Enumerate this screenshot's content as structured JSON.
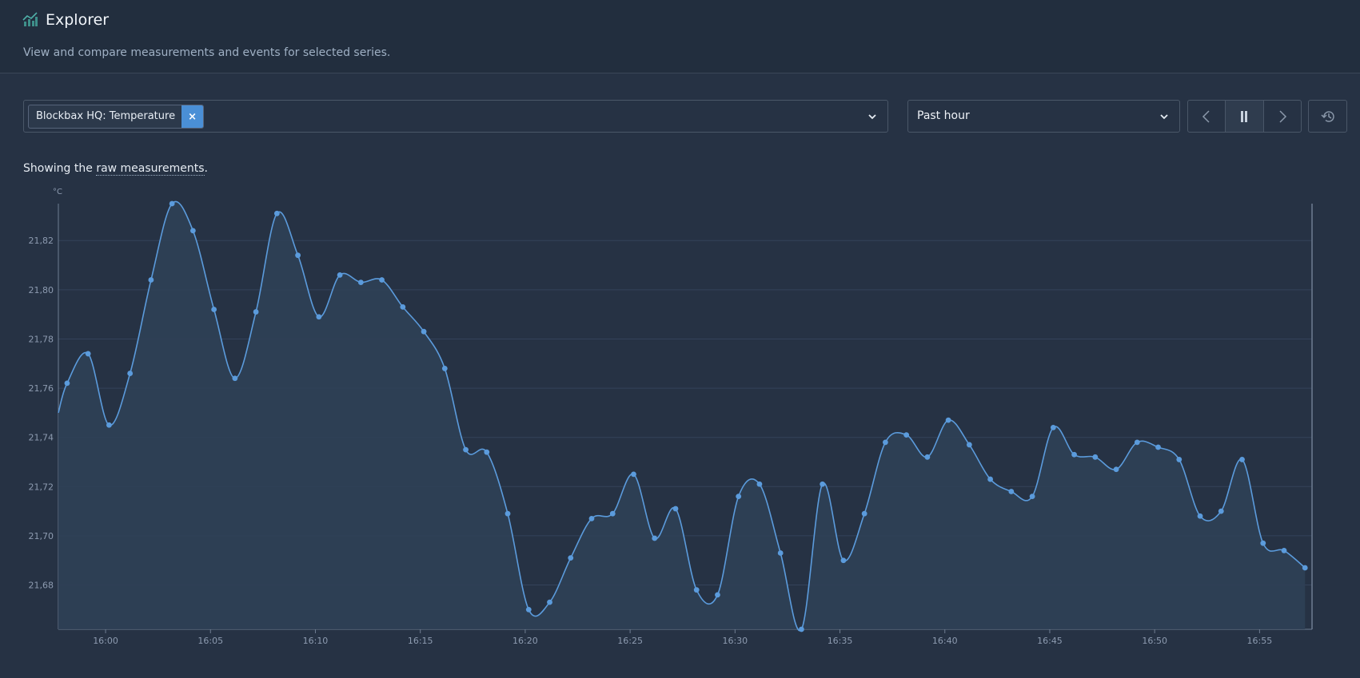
{
  "header": {
    "title": "Explorer",
    "subtitle": "View and compare measurements and events for selected series."
  },
  "series_selector": {
    "chips": [
      {
        "label": "Blockbax HQ: Temperature",
        "remove_symbol": "×"
      }
    ]
  },
  "period_selector": {
    "value": "Past hour"
  },
  "navigation": {
    "icons": [
      "chevron-left-icon",
      "pause-icon",
      "chevron-right-icon",
      "history-icon"
    ]
  },
  "info": {
    "prefix": "Showing the ",
    "link": "raw measurements",
    "suffix": "."
  },
  "colors": {
    "accent": "#5b9bdc",
    "background": "#263244",
    "header": "#222e3e"
  },
  "chart_data": {
    "type": "area",
    "unit": "°C",
    "x_format": "HH:MM",
    "xlim": [
      "15:57:45",
      "16:57:30"
    ],
    "ylim": [
      21.662,
      21.835
    ],
    "y_ticks": [
      "21,68",
      "21,70",
      "21,72",
      "21,74",
      "21,76",
      "21,78",
      "21,80",
      "21,82"
    ],
    "x_ticks": [
      "16:00",
      "16:05",
      "16:10",
      "16:15",
      "16:20",
      "16:25",
      "16:30",
      "16:35",
      "16:40",
      "16:45",
      "16:50",
      "16:55"
    ],
    "grid": true,
    "series": [
      {
        "x": [
          "15:57:45",
          "15:58:10",
          "15:59:10",
          "16:00:10",
          "16:01:10",
          "16:02:10",
          "16:03:10",
          "16:04:10",
          "16:05:10",
          "16:06:10",
          "16:07:10",
          "16:08:10",
          "16:09:10",
          "16:10:10",
          "16:11:10",
          "16:12:10",
          "16:13:10",
          "16:14:10",
          "16:15:10",
          "16:16:10",
          "16:17:10",
          "16:18:10",
          "16:19:10",
          "16:20:10",
          "16:21:10",
          "16:22:10",
          "16:23:10",
          "16:24:10",
          "16:25:10",
          "16:26:10",
          "16:27:10",
          "16:28:10",
          "16:29:10",
          "16:30:10",
          "16:31:10",
          "16:32:10",
          "16:33:10",
          "16:34:10",
          "16:35:10",
          "16:36:10",
          "16:37:10",
          "16:38:10",
          "16:39:10",
          "16:40:10",
          "16:41:10",
          "16:42:10",
          "16:43:10",
          "16:44:10",
          "16:45:10",
          "16:46:10",
          "16:47:10",
          "16:48:10",
          "16:49:10",
          "16:50:10",
          "16:51:10",
          "16:52:10",
          "16:53:10",
          "16:54:10",
          "16:55:10",
          "16:56:10",
          "16:57:10"
        ],
        "y": [
          21.75,
          21.762,
          21.774,
          21.745,
          21.766,
          21.804,
          21.835,
          21.824,
          21.792,
          21.764,
          21.791,
          21.831,
          21.814,
          21.789,
          21.806,
          21.803,
          21.804,
          21.793,
          21.783,
          21.768,
          21.735,
          21.734,
          21.709,
          21.67,
          21.673,
          21.691,
          21.707,
          21.709,
          21.725,
          21.699,
          21.711,
          21.678,
          21.676,
          21.716,
          21.721,
          21.693,
          21.662,
          21.721,
          21.69,
          21.709,
          21.738,
          21.741,
          21.732,
          21.747,
          21.737,
          21.723,
          21.718,
          21.716,
          21.744,
          21.733,
          21.732,
          21.727,
          21.738,
          21.736,
          21.731,
          21.708,
          21.71,
          21.731,
          21.697,
          21.694,
          21.687
        ]
      }
    ]
  }
}
